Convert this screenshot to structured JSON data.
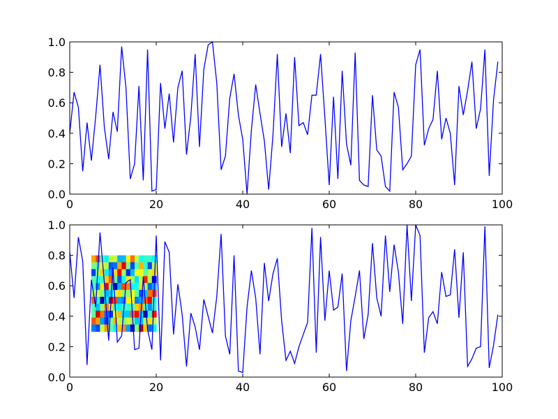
{
  "chart_data": [
    {
      "type": "line",
      "title": "",
      "xlabel": "",
      "ylabel": "",
      "xlim": [
        0,
        100
      ],
      "ylim": [
        0,
        1
      ],
      "xticks": [
        "0",
        "20",
        "40",
        "60",
        "80",
        "100"
      ],
      "yticks": [
        "0.0",
        "0.2",
        "0.4",
        "0.6",
        "0.8",
        "1.0"
      ],
      "grid": false,
      "series": [
        {
          "color": "#0000ff",
          "x": [
            0,
            1,
            2,
            3,
            4,
            5,
            6,
            7,
            8,
            9,
            10,
            11,
            12,
            13,
            14,
            15,
            16,
            17,
            18,
            19,
            20,
            21,
            22,
            23,
            24,
            25,
            26,
            27,
            28,
            29,
            30,
            31,
            32,
            33,
            34,
            35,
            36,
            37,
            38,
            39,
            40,
            41,
            42,
            43,
            44,
            45,
            46,
            47,
            48,
            49,
            50,
            51,
            52,
            53,
            54,
            55,
            56,
            57,
            58,
            59,
            60,
            61,
            62,
            63,
            64,
            65,
            66,
            67,
            68,
            69,
            70,
            71,
            72,
            73,
            74,
            75,
            76,
            77,
            78,
            79,
            80,
            81,
            82,
            83,
            84,
            85,
            86,
            87,
            88,
            89,
            90,
            91,
            92,
            93,
            94,
            95,
            96,
            97,
            98,
            99
          ],
          "y": [
            0.4,
            0.67,
            0.57,
            0.15,
            0.47,
            0.22,
            0.51,
            0.85,
            0.44,
            0.23,
            0.54,
            0.41,
            0.97,
            0.7,
            0.1,
            0.2,
            0.71,
            0.09,
            0.95,
            0.02,
            0.03,
            0.73,
            0.43,
            0.66,
            0.34,
            0.7,
            0.81,
            0.26,
            0.51,
            0.92,
            0.31,
            0.82,
            0.98,
            1.0,
            0.73,
            0.16,
            0.25,
            0.63,
            0.79,
            0.52,
            0.36,
            0.0,
            0.42,
            0.72,
            0.53,
            0.35,
            0.03,
            0.39,
            0.92,
            0.31,
            0.53,
            0.27,
            0.9,
            0.45,
            0.47,
            0.39,
            0.65,
            0.65,
            0.92,
            0.5,
            0.06,
            0.64,
            0.1,
            0.81,
            0.33,
            0.19,
            0.93,
            0.09,
            0.06,
            0.05,
            0.65,
            0.29,
            0.25,
            0.05,
            0.02,
            0.67,
            0.57,
            0.16,
            0.2,
            0.25,
            0.85,
            0.95,
            0.32,
            0.43,
            0.49,
            0.81,
            0.36,
            0.5,
            0.4,
            0.06,
            0.71,
            0.52,
            0.68,
            0.87,
            0.43,
            0.56,
            0.95,
            0.12,
            0.62,
            0.87
          ]
        }
      ]
    },
    {
      "type": "line",
      "title": "",
      "xlabel": "",
      "ylabel": "",
      "xlim": [
        0,
        100
      ],
      "ylim": [
        0,
        1
      ],
      "xticks": [
        "0",
        "20",
        "40",
        "60",
        "80",
        "100"
      ],
      "yticks": [
        "0.0",
        "0.2",
        "0.4",
        "0.6",
        "0.8",
        "1.0"
      ],
      "grid": false,
      "series": [
        {
          "color": "#0000ff",
          "x": [
            0,
            1,
            2,
            3,
            4,
            5,
            6,
            7,
            8,
            9,
            10,
            11,
            12,
            13,
            14,
            15,
            16,
            17,
            18,
            19,
            20,
            21,
            22,
            23,
            24,
            25,
            26,
            27,
            28,
            29,
            30,
            31,
            32,
            33,
            34,
            35,
            36,
            37,
            38,
            39,
            40,
            41,
            42,
            43,
            44,
            45,
            46,
            47,
            48,
            49,
            50,
            51,
            52,
            53,
            54,
            55,
            56,
            57,
            58,
            59,
            60,
            61,
            62,
            63,
            64,
            65,
            66,
            67,
            68,
            69,
            70,
            71,
            72,
            73,
            74,
            75,
            76,
            77,
            78,
            79,
            80,
            81,
            82,
            83,
            84,
            85,
            86,
            87,
            88,
            89,
            90,
            91,
            92,
            93,
            94,
            95,
            96,
            97,
            98,
            99
          ],
          "y": [
            0.82,
            0.52,
            0.92,
            0.76,
            0.08,
            0.64,
            0.46,
            0.95,
            0.62,
            0.24,
            0.72,
            0.23,
            0.27,
            0.62,
            0.64,
            0.18,
            0.19,
            0.66,
            0.31,
            0.18,
            0.93,
            0.11,
            0.89,
            0.82,
            0.28,
            0.61,
            0.41,
            0.07,
            0.42,
            0.33,
            0.18,
            0.51,
            0.4,
            0.29,
            0.53,
            0.94,
            0.27,
            0.15,
            0.8,
            0.04,
            0.03,
            0.46,
            0.7,
            0.52,
            0.15,
            0.75,
            0.5,
            0.68,
            0.78,
            0.37,
            0.11,
            0.17,
            0.09,
            0.2,
            0.28,
            0.36,
            0.98,
            0.16,
            0.92,
            0.37,
            0.7,
            0.44,
            0.46,
            0.68,
            0.04,
            0.37,
            0.53,
            0.7,
            0.25,
            0.41,
            0.88,
            0.52,
            0.4,
            0.93,
            0.56,
            0.87,
            0.69,
            0.35,
            1.0,
            0.5,
            1.0,
            0.93,
            0.16,
            0.39,
            0.43,
            0.35,
            0.69,
            0.53,
            0.54,
            0.84,
            0.39,
            0.82,
            0.07,
            0.12,
            0.19,
            0.2,
            0.99,
            0.06,
            0.21,
            0.41
          ]
        }
      ],
      "inset_image": {
        "colormap": "jet",
        "extent_x": [
          5,
          20
        ],
        "extent_y": [
          0.3,
          0.8
        ]
      }
    }
  ]
}
